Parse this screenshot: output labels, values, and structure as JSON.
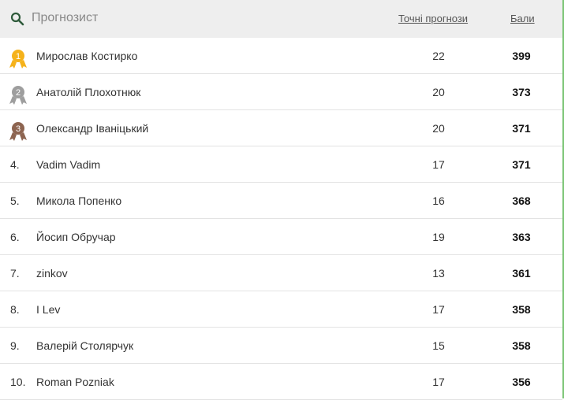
{
  "header": {
    "search_placeholder": "Прогнозист",
    "col_exact": "Точні прогнози",
    "col_points": "Бали"
  },
  "colors": {
    "gold": "#f5b21b",
    "silver": "#9e9e9e",
    "bronze": "#8d6450",
    "accent": "#7cc576"
  },
  "rows": [
    {
      "rank": "1",
      "medal": "gold",
      "name": "Мирослав Костирко",
      "exact": "22",
      "points": "399"
    },
    {
      "rank": "2",
      "medal": "silver",
      "name": "Анатолій Плохотнюк",
      "exact": "20",
      "points": "373"
    },
    {
      "rank": "3",
      "medal": "bronze",
      "name": "Олександр Іваніцький",
      "exact": "20",
      "points": "371"
    },
    {
      "rank": "4.",
      "name": "Vadim Vadim",
      "exact": "17",
      "points": "371"
    },
    {
      "rank": "5.",
      "name": "Микола Попенко",
      "exact": "16",
      "points": "368"
    },
    {
      "rank": "6.",
      "name": "Йосип Обручар",
      "exact": "19",
      "points": "363"
    },
    {
      "rank": "7.",
      "name": "zinkov",
      "exact": "13",
      "points": "361"
    },
    {
      "rank": "8.",
      "name": "I Lev",
      "exact": "17",
      "points": "358"
    },
    {
      "rank": "9.",
      "name": "Валерій Столярчук",
      "exact": "15",
      "points": "358"
    },
    {
      "rank": "10.",
      "name": "Roman Pozniak",
      "exact": "17",
      "points": "356"
    }
  ]
}
